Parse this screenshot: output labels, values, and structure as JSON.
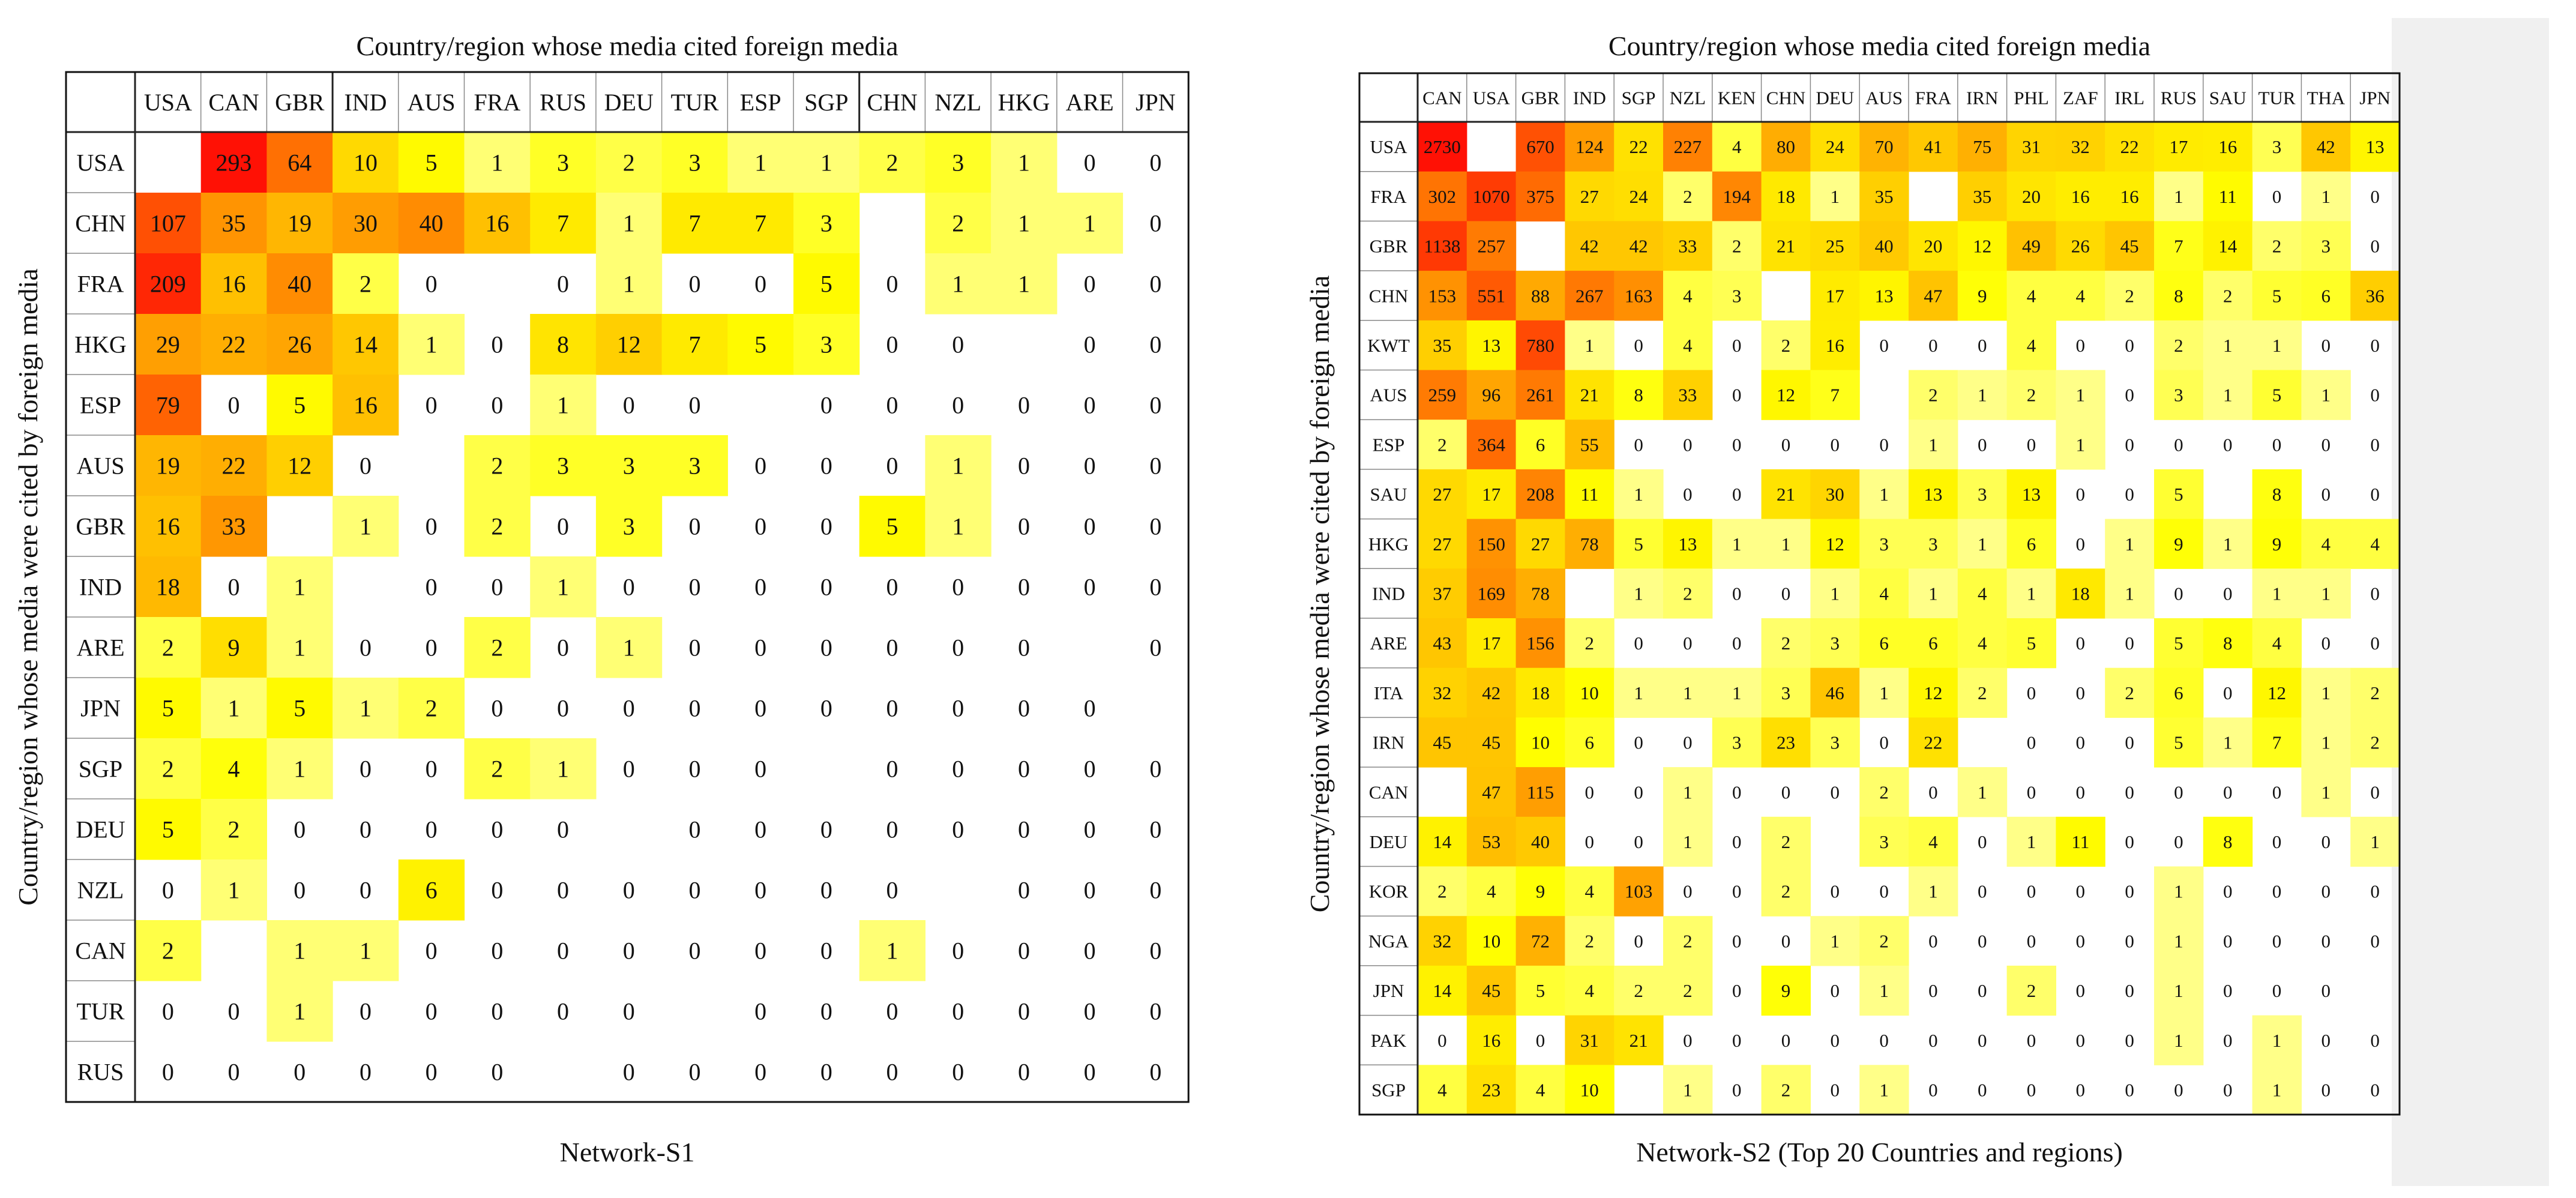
{
  "chart_data": [
    {
      "type": "heatmap",
      "title": "Country/region whose media cited foreign media",
      "xlabel": "Network-S1",
      "ylabel": "Country/region whose media were cited by foreign media",
      "columns": [
        "USA",
        "CAN",
        "GBR",
        "IND",
        "AUS",
        "FRA",
        "RUS",
        "DEU",
        "TUR",
        "ESP",
        "SGP",
        "CHN",
        "NZL",
        "HKG",
        "ARE",
        "JPN"
      ],
      "rows": [
        "USA",
        "CHN",
        "FRA",
        "HKG",
        "ESP",
        "AUS",
        "GBR",
        "IND",
        "ARE",
        "JPN",
        "SGP",
        "DEU",
        "NZL",
        "CAN",
        "TUR",
        "RUS"
      ],
      "values": [
        [
          null,
          293,
          64,
          10,
          5,
          1,
          3,
          2,
          3,
          1,
          1,
          2,
          3,
          1,
          0,
          0
        ],
        [
          107,
          35,
          19,
          30,
          40,
          16,
          7,
          1,
          7,
          7,
          3,
          null,
          2,
          1,
          1,
          0
        ],
        [
          209,
          16,
          40,
          2,
          0,
          null,
          0,
          1,
          0,
          0,
          5,
          0,
          1,
          1,
          0,
          0
        ],
        [
          29,
          22,
          26,
          14,
          1,
          0,
          8,
          12,
          7,
          5,
          3,
          0,
          0,
          null,
          0,
          0
        ],
        [
          79,
          0,
          5,
          16,
          0,
          0,
          1,
          0,
          0,
          null,
          0,
          0,
          0,
          0,
          0,
          0
        ],
        [
          19,
          22,
          12,
          0,
          null,
          2,
          3,
          3,
          3,
          0,
          0,
          0,
          1,
          0,
          0,
          0
        ],
        [
          16,
          33,
          null,
          1,
          0,
          2,
          0,
          3,
          0,
          0,
          0,
          5,
          1,
          0,
          0,
          0
        ],
        [
          18,
          0,
          1,
          null,
          0,
          0,
          1,
          0,
          0,
          0,
          0,
          0,
          0,
          0,
          0,
          0
        ],
        [
          2,
          9,
          1,
          0,
          0,
          2,
          0,
          1,
          0,
          0,
          0,
          0,
          0,
          0,
          null,
          0
        ],
        [
          5,
          1,
          5,
          1,
          2,
          0,
          0,
          0,
          0,
          0,
          0,
          0,
          0,
          0,
          0,
          null
        ],
        [
          2,
          4,
          1,
          0,
          0,
          2,
          1,
          0,
          0,
          0,
          null,
          0,
          0,
          0,
          0,
          0
        ],
        [
          5,
          2,
          0,
          0,
          0,
          0,
          0,
          null,
          0,
          0,
          0,
          0,
          0,
          0,
          0,
          0
        ],
        [
          0,
          1,
          0,
          0,
          6,
          0,
          0,
          0,
          0,
          0,
          0,
          0,
          null,
          0,
          0,
          0
        ],
        [
          2,
          null,
          1,
          1,
          0,
          0,
          0,
          0,
          0,
          0,
          0,
          1,
          0,
          0,
          0,
          0
        ],
        [
          0,
          0,
          1,
          0,
          0,
          0,
          0,
          0,
          null,
          0,
          0,
          0,
          0,
          0,
          0,
          0
        ],
        [
          0,
          0,
          0,
          0,
          0,
          0,
          null,
          0,
          0,
          0,
          0,
          0,
          0,
          0,
          0,
          0
        ]
      ]
    },
    {
      "type": "heatmap",
      "title": "Country/region whose media cited foreign media",
      "xlabel": "Network-S2 (Top 20 Countries and regions)",
      "ylabel": "Country/region whose media were cited by foreign media",
      "columns": [
        "CAN",
        "USA",
        "GBR",
        "IND",
        "SGP",
        "NZL",
        "KEN",
        "CHN",
        "DEU",
        "AUS",
        "FRA",
        "IRN",
        "PHL",
        "ZAF",
        "IRL",
        "RUS",
        "SAU",
        "TUR",
        "THA",
        "JPN"
      ],
      "rows": [
        "USA",
        "FRA",
        "GBR",
        "CHN",
        "KWT",
        "AUS",
        "ESP",
        "SAU",
        "HKG",
        "IND",
        "ARE",
        "ITA",
        "IRN",
        "CAN",
        "DEU",
        "KOR",
        "NGA",
        "JPN",
        "PAK",
        "SGP"
      ],
      "values": [
        [
          2730,
          null,
          670,
          124,
          22,
          227,
          4,
          80,
          24,
          70,
          41,
          75,
          31,
          32,
          22,
          17,
          16,
          3,
          42,
          13
        ],
        [
          302,
          1070,
          375,
          27,
          24,
          2,
          194,
          18,
          1,
          35,
          null,
          35,
          20,
          16,
          16,
          1,
          11,
          0,
          1,
          0
        ],
        [
          1138,
          257,
          null,
          42,
          42,
          33,
          2,
          21,
          25,
          40,
          20,
          12,
          49,
          26,
          45,
          7,
          14,
          2,
          3,
          0
        ],
        [
          153,
          551,
          88,
          267,
          163,
          4,
          3,
          null,
          17,
          13,
          47,
          9,
          4,
          4,
          2,
          8,
          2,
          5,
          6,
          36
        ],
        [
          35,
          13,
          780,
          1,
          0,
          4,
          0,
          2,
          16,
          0,
          0,
          0,
          4,
          0,
          0,
          2,
          1,
          1,
          0,
          0
        ],
        [
          259,
          96,
          261,
          21,
          8,
          33,
          0,
          12,
          7,
          null,
          2,
          1,
          2,
          1,
          0,
          3,
          1,
          5,
          1,
          0
        ],
        [
          2,
          364,
          6,
          55,
          0,
          0,
          0,
          0,
          0,
          0,
          1,
          0,
          0,
          1,
          0,
          0,
          0,
          0,
          0,
          0
        ],
        [
          27,
          17,
          208,
          11,
          1,
          0,
          0,
          21,
          30,
          1,
          13,
          3,
          13,
          0,
          0,
          5,
          null,
          8,
          0,
          0
        ],
        [
          27,
          150,
          27,
          78,
          5,
          13,
          1,
          1,
          12,
          3,
          3,
          1,
          6,
          0,
          1,
          9,
          1,
          9,
          4,
          4
        ],
        [
          37,
          169,
          78,
          null,
          1,
          2,
          0,
          0,
          1,
          4,
          1,
          4,
          1,
          18,
          1,
          0,
          0,
          1,
          1,
          0
        ],
        [
          43,
          17,
          156,
          2,
          0,
          0,
          0,
          2,
          3,
          6,
          6,
          4,
          5,
          0,
          0,
          5,
          8,
          4,
          0,
          0
        ],
        [
          32,
          42,
          18,
          10,
          1,
          1,
          1,
          3,
          46,
          1,
          12,
          2,
          0,
          0,
          2,
          6,
          0,
          12,
          1,
          2
        ],
        [
          45,
          45,
          10,
          6,
          0,
          0,
          3,
          23,
          3,
          0,
          22,
          null,
          0,
          0,
          0,
          5,
          1,
          7,
          1,
          2
        ],
        [
          null,
          47,
          115,
          0,
          0,
          1,
          0,
          0,
          0,
          2,
          0,
          1,
          0,
          0,
          0,
          0,
          0,
          0,
          1,
          0
        ],
        [
          14,
          53,
          40,
          0,
          0,
          1,
          0,
          2,
          null,
          3,
          4,
          0,
          1,
          11,
          0,
          0,
          8,
          0,
          0,
          1
        ],
        [
          2,
          4,
          9,
          4,
          103,
          0,
          0,
          2,
          0,
          0,
          1,
          0,
          0,
          0,
          0,
          1,
          0,
          0,
          0,
          0
        ],
        [
          32,
          10,
          72,
          2,
          0,
          2,
          0,
          0,
          1,
          2,
          0,
          0,
          0,
          0,
          0,
          1,
          0,
          0,
          0,
          0
        ],
        [
          14,
          45,
          5,
          4,
          2,
          2,
          0,
          9,
          0,
          1,
          0,
          0,
          2,
          0,
          0,
          1,
          0,
          0,
          0,
          null
        ],
        [
          0,
          16,
          0,
          31,
          21,
          0,
          0,
          0,
          0,
          0,
          0,
          0,
          0,
          0,
          0,
          1,
          0,
          1,
          0,
          0
        ],
        [
          4,
          23,
          4,
          10,
          null,
          1,
          0,
          2,
          0,
          1,
          0,
          0,
          0,
          0,
          0,
          0,
          0,
          1,
          0,
          0
        ]
      ]
    }
  ]
}
